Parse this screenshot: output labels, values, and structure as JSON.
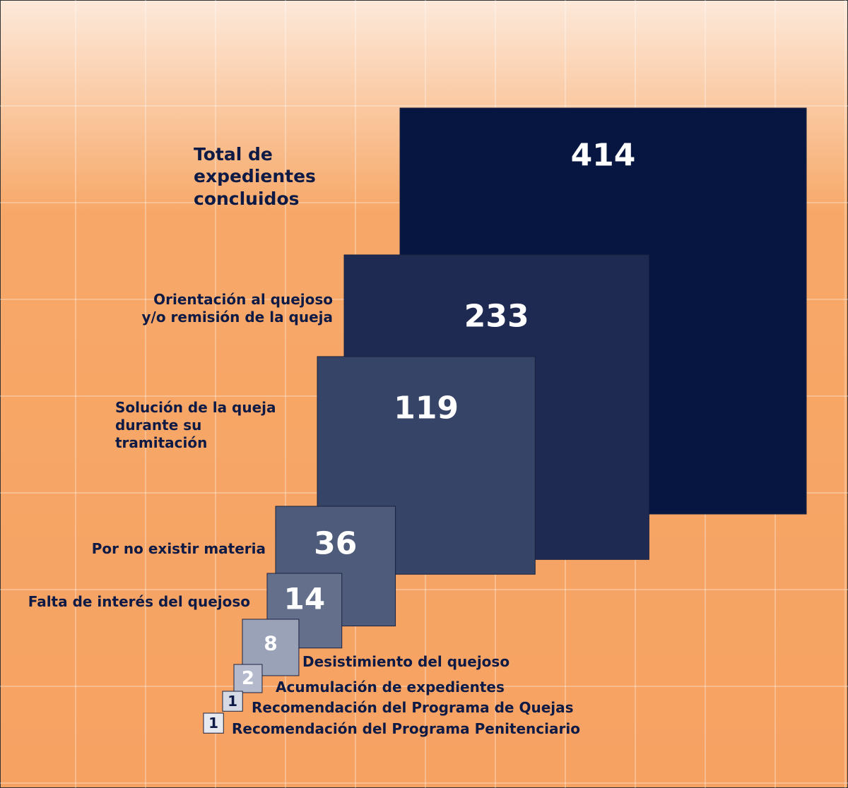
{
  "chart_data": {
    "type": "squares",
    "categories": [
      "Total de expedientes concluidos",
      "Orientación al quejoso y/o remisión de la queja",
      "Solución de la queja durante su tramitación",
      "Por no existir materia",
      "Falta de interés del quejoso",
      "Desistimiento del quejoso",
      "Acumulación de expedientes",
      "Recomendación del Programa de Quejas",
      "Recomendación del Programa Penitenciario"
    ],
    "values": [
      414,
      233,
      119,
      36,
      14,
      8,
      2,
      1,
      1
    ],
    "colors": [
      "#061640",
      "#1e2a52",
      "#364468",
      "#4f5b7a",
      "#646f8c",
      "#9aa2b8",
      "#b4bacb",
      "#d6dae5",
      "#e6e9f0"
    ]
  }
}
